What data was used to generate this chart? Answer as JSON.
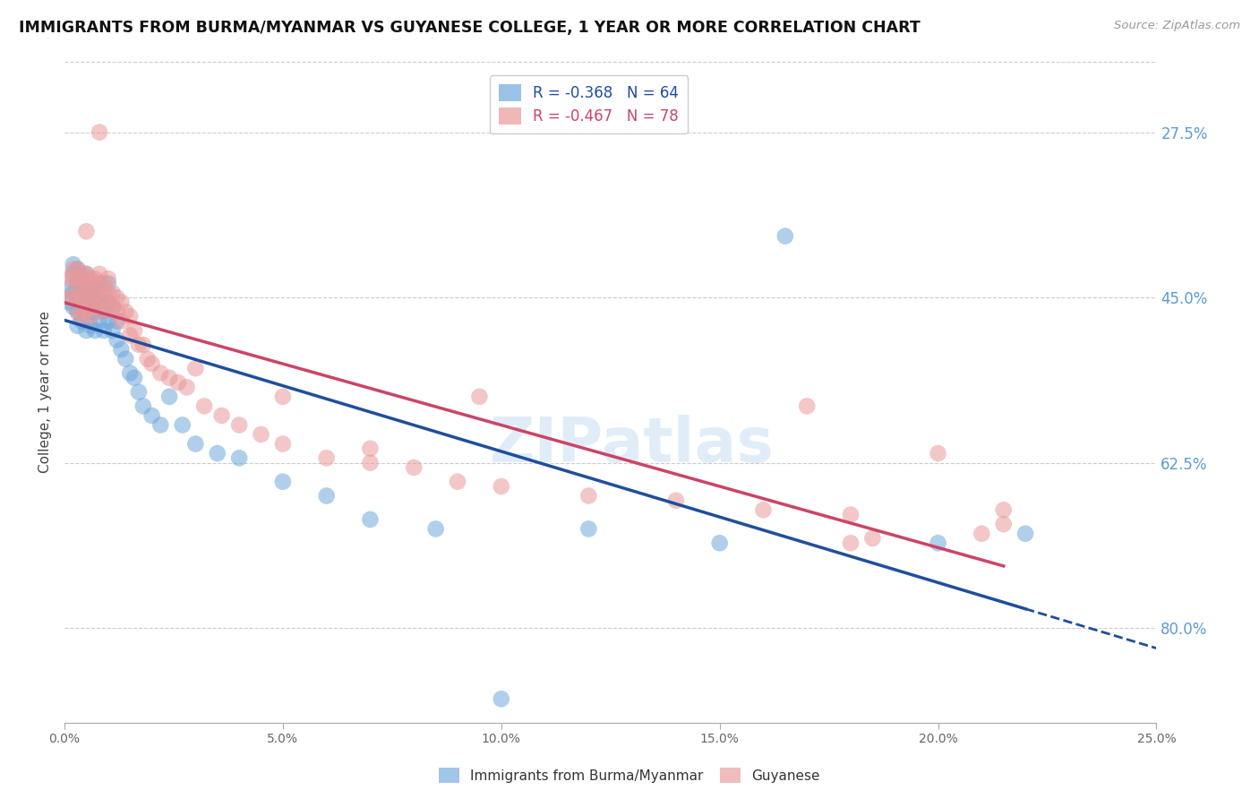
{
  "title": "IMMIGRANTS FROM BURMA/MYANMAR VS GUYANESE COLLEGE, 1 YEAR OR MORE CORRELATION CHART",
  "source": "Source: ZipAtlas.com",
  "ylabel": "College, 1 year or more",
  "y_labels_right": [
    "80.0%",
    "62.5%",
    "45.0%",
    "27.5%"
  ],
  "x_ticks_pct": [
    0.0,
    0.05,
    0.1,
    0.15,
    0.2,
    0.25
  ],
  "y_ticks_pct": [
    0.275,
    0.45,
    0.625,
    0.8
  ],
  "xlim": [
    0.0,
    0.25
  ],
  "ylim": [
    0.175,
    0.875
  ],
  "blue_R": -0.368,
  "blue_N": 64,
  "pink_R": -0.467,
  "pink_N": 78,
  "blue_color": "#6fa8dc",
  "pink_color": "#ea9999",
  "blue_line_color": "#1f4e9e",
  "pink_line_color": "#cc4466",
  "watermark": "ZIPatlas",
  "legend_label_blue": "Immigrants from Burma/Myanmar",
  "legend_label_pink": "Guyanese",
  "blue_scatter_x": [
    0.001,
    0.001,
    0.002,
    0.002,
    0.002,
    0.002,
    0.003,
    0.003,
    0.003,
    0.003,
    0.003,
    0.004,
    0.004,
    0.004,
    0.004,
    0.005,
    0.005,
    0.005,
    0.005,
    0.005,
    0.006,
    0.006,
    0.006,
    0.006,
    0.007,
    0.007,
    0.007,
    0.007,
    0.008,
    0.008,
    0.008,
    0.009,
    0.009,
    0.009,
    0.01,
    0.01,
    0.01,
    0.011,
    0.011,
    0.012,
    0.012,
    0.013,
    0.014,
    0.015,
    0.016,
    0.017,
    0.018,
    0.02,
    0.022,
    0.024,
    0.027,
    0.03,
    0.035,
    0.04,
    0.05,
    0.06,
    0.07,
    0.085,
    0.1,
    0.12,
    0.15,
    0.165,
    0.2,
    0.22
  ],
  "blue_scatter_y": [
    0.635,
    0.62,
    0.66,
    0.65,
    0.63,
    0.615,
    0.64,
    0.655,
    0.625,
    0.61,
    0.595,
    0.645,
    0.63,
    0.615,
    0.6,
    0.65,
    0.635,
    0.625,
    0.61,
    0.59,
    0.64,
    0.625,
    0.61,
    0.595,
    0.635,
    0.625,
    0.61,
    0.59,
    0.64,
    0.62,
    0.6,
    0.63,
    0.61,
    0.59,
    0.64,
    0.62,
    0.6,
    0.615,
    0.59,
    0.6,
    0.58,
    0.57,
    0.56,
    0.545,
    0.54,
    0.525,
    0.51,
    0.5,
    0.49,
    0.52,
    0.49,
    0.47,
    0.46,
    0.455,
    0.43,
    0.415,
    0.39,
    0.38,
    0.2,
    0.38,
    0.365,
    0.69,
    0.365,
    0.375
  ],
  "pink_scatter_x": [
    0.001,
    0.001,
    0.002,
    0.002,
    0.002,
    0.003,
    0.003,
    0.003,
    0.003,
    0.004,
    0.004,
    0.004,
    0.004,
    0.005,
    0.005,
    0.005,
    0.005,
    0.006,
    0.006,
    0.006,
    0.006,
    0.007,
    0.007,
    0.007,
    0.008,
    0.008,
    0.008,
    0.009,
    0.009,
    0.009,
    0.01,
    0.01,
    0.01,
    0.011,
    0.011,
    0.012,
    0.012,
    0.013,
    0.013,
    0.014,
    0.015,
    0.015,
    0.016,
    0.017,
    0.018,
    0.019,
    0.02,
    0.022,
    0.024,
    0.026,
    0.028,
    0.032,
    0.036,
    0.04,
    0.045,
    0.05,
    0.06,
    0.07,
    0.08,
    0.09,
    0.1,
    0.12,
    0.14,
    0.16,
    0.18,
    0.2,
    0.215,
    0.215,
    0.21,
    0.185,
    0.18,
    0.17,
    0.05,
    0.07,
    0.095,
    0.03,
    0.008,
    0.005
  ],
  "pink_scatter_y": [
    0.645,
    0.625,
    0.655,
    0.645,
    0.625,
    0.655,
    0.64,
    0.625,
    0.61,
    0.65,
    0.635,
    0.62,
    0.605,
    0.65,
    0.64,
    0.625,
    0.61,
    0.645,
    0.635,
    0.62,
    0.605,
    0.645,
    0.63,
    0.615,
    0.65,
    0.635,
    0.62,
    0.64,
    0.625,
    0.61,
    0.645,
    0.63,
    0.615,
    0.63,
    0.615,
    0.625,
    0.61,
    0.62,
    0.6,
    0.61,
    0.605,
    0.585,
    0.59,
    0.575,
    0.575,
    0.56,
    0.555,
    0.545,
    0.54,
    0.535,
    0.53,
    0.51,
    0.5,
    0.49,
    0.48,
    0.47,
    0.455,
    0.45,
    0.445,
    0.43,
    0.425,
    0.415,
    0.41,
    0.4,
    0.395,
    0.46,
    0.4,
    0.385,
    0.375,
    0.37,
    0.365,
    0.51,
    0.52,
    0.465,
    0.52,
    0.55,
    0.8,
    0.695
  ]
}
